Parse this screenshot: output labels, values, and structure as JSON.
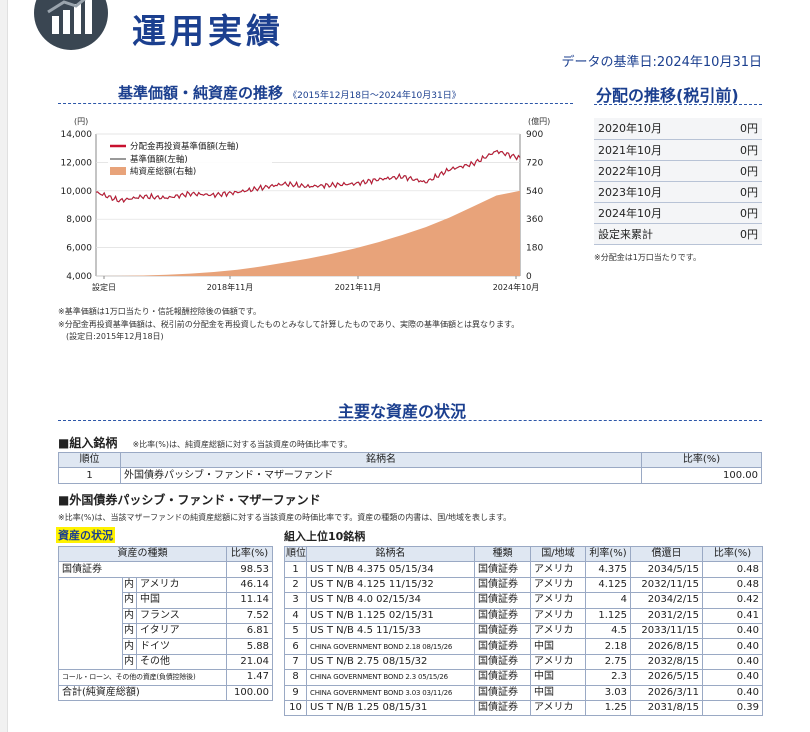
{
  "header": {
    "title": "運用実績",
    "data_date": "データの基準日:2024年10月31日"
  },
  "nav_chart": {
    "title": "基準価額・純資産の推移",
    "period": "《2015年12月18日～2024年10月31日》",
    "left_unit": "(円)",
    "right_unit": "(億円)",
    "legend": [
      "分配金再投資基準価額(左軸)",
      "基準価額(左軸)",
      "純資産総額(右軸)"
    ],
    "notes": [
      "※基準価額は1万口当たり・信託報酬控除後の価額です。",
      "※分配金再投資基準価額は、税引前の分配金を再投資したものとみなして計算したものであり、実際の基準価額とは異なります。",
      "(設定日:2015年12月18日)"
    ]
  },
  "chart_data": {
    "type": "line",
    "title": "基準価額・純資産の推移",
    "x_ticks": [
      "設定日",
      "2018年11月",
      "2021年11月",
      "2024年10月"
    ],
    "left_axis": {
      "unit": "(円)",
      "ticks": [
        4000,
        6000,
        8000,
        10000,
        12000,
        14000
      ],
      "range": [
        4000,
        14000
      ]
    },
    "right_axis": {
      "unit": "(億円)",
      "ticks": [
        0,
        180,
        360,
        540,
        720,
        900
      ],
      "range": [
        0,
        900
      ]
    },
    "x": [
      "2015-12",
      "2016-06",
      "2017-01",
      "2017-06",
      "2018-01",
      "2018-06",
      "2019-01",
      "2019-06",
      "2020-01",
      "2020-06",
      "2021-01",
      "2021-06",
      "2022-01",
      "2022-06",
      "2023-01",
      "2023-06",
      "2024-01",
      "2024-06",
      "2024-10"
    ],
    "series": [
      {
        "name": "分配金再投資基準価額(左軸)",
        "axis": "left",
        "color": "#c8102e",
        "values": [
          9900,
          9300,
          9600,
          9500,
          9800,
          9700,
          9900,
          10200,
          10500,
          10300,
          10400,
          10500,
          10800,
          11000,
          10600,
          11500,
          11900,
          12800,
          12300
        ]
      },
      {
        "name": "基準価額(左軸)",
        "axis": "left",
        "color": "#777777",
        "values": [
          9900,
          9300,
          9600,
          9500,
          9800,
          9700,
          9900,
          10200,
          10500,
          10300,
          10400,
          10500,
          10800,
          11000,
          10600,
          11500,
          11900,
          12800,
          12300
        ]
      },
      {
        "name": "純資産総額(右軸)",
        "axis": "right",
        "color": "#e8a37a",
        "type": "area",
        "values": [
          0,
          1,
          3,
          8,
          15,
          25,
          40,
          60,
          85,
          110,
          140,
          175,
          215,
          260,
          310,
          370,
          440,
          510,
          540
        ]
      }
    ]
  },
  "distribution": {
    "title": "分配の推移(税引前)",
    "rows": [
      {
        "label": "2020年10月",
        "value": "0円"
      },
      {
        "label": "2021年10月",
        "value": "0円"
      },
      {
        "label": "2022年10月",
        "value": "0円"
      },
      {
        "label": "2023年10月",
        "value": "0円"
      },
      {
        "label": "2024年10月",
        "value": "0円"
      },
      {
        "label": "設定来累計",
        "value": "0円"
      }
    ],
    "note": "※分配金は1万口当たりです。"
  },
  "assets": {
    "title": "主要な資産の状況",
    "holdings_label": "■組入銘柄",
    "holdings_note": "※比率(%)は、純資産総額に対する当該資産の時価比率です。",
    "holdings_headers": [
      "順位",
      "銘柄名",
      "比率(%)"
    ],
    "holdings_rows": [
      {
        "rank": "1",
        "name": "外国債券パッシブ・ファンド・マザーファンド",
        "ratio": "100.00"
      }
    ],
    "mother_label": "■外国債券パッシブ・ファンド・マザーファンド",
    "mother_note": "※比率(%)は、当該マザーファンドの純資産総額に対する当該資産の時価比率です。資産の種類の内書は、国/地域を表します。",
    "status_label": "資産の状況",
    "top10_label": "組入上位10銘柄",
    "status_headers": [
      "資産の種類",
      "比率(%)"
    ],
    "status_rows": [
      {
        "prefix": "",
        "name": "国債証券",
        "ratio": "98.53"
      },
      {
        "prefix": "内",
        "name": "アメリカ",
        "ratio": "46.14"
      },
      {
        "prefix": "内",
        "name": "中国",
        "ratio": "11.14"
      },
      {
        "prefix": "内",
        "name": "フランス",
        "ratio": "7.52"
      },
      {
        "prefix": "内",
        "name": "イタリア",
        "ratio": "6.81"
      },
      {
        "prefix": "内",
        "name": "ドイツ",
        "ratio": "5.88"
      },
      {
        "prefix": "内",
        "name": "その他",
        "ratio": "21.04"
      },
      {
        "prefix": "",
        "name": "コール・ローン、その他の資産(負債控除後)",
        "ratio": "1.47"
      },
      {
        "prefix": "",
        "name": "合計(純資産総額)",
        "ratio": "100.00"
      }
    ],
    "top10_headers": [
      "順位",
      "銘柄名",
      "種類",
      "国/地域",
      "利率(%)",
      "償還日",
      "比率(%)"
    ],
    "top10_rows": [
      {
        "rank": "1",
        "name": "US T N/B 4.375 05/15/34",
        "type": "国債証券",
        "region": "アメリカ",
        "rate": "4.375",
        "maturity": "2034/5/15",
        "ratio": "0.48"
      },
      {
        "rank": "2",
        "name": "US T N/B 4.125 11/15/32",
        "type": "国債証券",
        "region": "アメリカ",
        "rate": "4.125",
        "maturity": "2032/11/15",
        "ratio": "0.48"
      },
      {
        "rank": "3",
        "name": "US T N/B 4.0 02/15/34",
        "type": "国債証券",
        "region": "アメリカ",
        "rate": "4",
        "maturity": "2034/2/15",
        "ratio": "0.42"
      },
      {
        "rank": "4",
        "name": "US T N/B 1.125 02/15/31",
        "type": "国債証券",
        "region": "アメリカ",
        "rate": "1.125",
        "maturity": "2031/2/15",
        "ratio": "0.41"
      },
      {
        "rank": "5",
        "name": "US T N/B 4.5 11/15/33",
        "type": "国債証券",
        "region": "アメリカ",
        "rate": "4.5",
        "maturity": "2033/11/15",
        "ratio": "0.40"
      },
      {
        "rank": "6",
        "name": "CHINA GOVERNMENT BOND 2.18 08/15/26",
        "type": "国債証券",
        "region": "中国",
        "rate": "2.18",
        "maturity": "2026/8/15",
        "ratio": "0.40"
      },
      {
        "rank": "7",
        "name": "US T N/B 2.75 08/15/32",
        "type": "国債証券",
        "region": "アメリカ",
        "rate": "2.75",
        "maturity": "2032/8/15",
        "ratio": "0.40"
      },
      {
        "rank": "8",
        "name": "CHINA GOVERNMENT BOND 2.3 05/15/26",
        "type": "国債証券",
        "region": "中国",
        "rate": "2.3",
        "maturity": "2026/5/15",
        "ratio": "0.40"
      },
      {
        "rank": "9",
        "name": "CHINA GOVERNMENT BOND 3.03 03/11/26",
        "type": "国債証券",
        "region": "中国",
        "rate": "3.03",
        "maturity": "2026/3/11",
        "ratio": "0.40"
      },
      {
        "rank": "10",
        "name": "US T N/B 1.25 08/15/31",
        "type": "国債証券",
        "region": "アメリカ",
        "rate": "1.25",
        "maturity": "2031/8/15",
        "ratio": "0.39"
      }
    ]
  }
}
